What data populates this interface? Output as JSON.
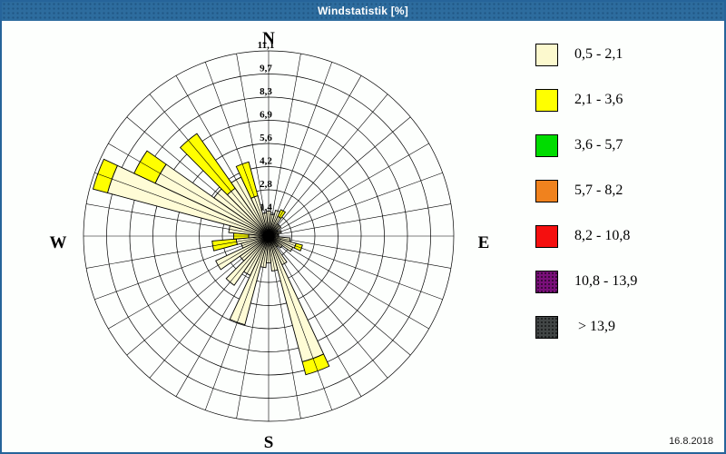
{
  "window": {
    "title": "Windstatistik [%]",
    "date": "16.8.2018"
  },
  "colors": {
    "titlebar": "#2d6c9e",
    "frame": "#26649a",
    "background": "#fdfffd",
    "grid": "#000000",
    "center_dot": "#000000"
  },
  "legend": {
    "position": "right",
    "items": [
      {
        "label": "0,5 - 2,1",
        "color": "#fcf9ce",
        "dotted": false
      },
      {
        "label": "2,1 - 3,6",
        "color": "#ffff00",
        "dotted": false
      },
      {
        "label": "3,6 - 5,7",
        "color": "#00dc00",
        "dotted": false
      },
      {
        "label": "5,7 - 8,2",
        "color": "#f0821e",
        "dotted": false
      },
      {
        "label": "8,2 - 10,8",
        "color": "#f50f0f",
        "dotted": false
      },
      {
        "label": "10,8 - 13,9",
        "color": "#7a0f7a",
        "dotted": true
      },
      {
        "label": " > 13,9",
        "color": "#424646",
        "dotted": true
      }
    ]
  },
  "chart_data": {
    "type": "windrose",
    "title": "Windstatistik [%]",
    "units": "percent_frequency",
    "grid": true,
    "legend_position": "right",
    "compass": {
      "north": "N",
      "east": "E",
      "south": "S",
      "west": "W"
    },
    "ring_labels": [
      "1,4",
      "2,8",
      "4,2",
      "5,6",
      "6,9",
      "8,3",
      "9,7",
      "11,1"
    ],
    "ring_count": 8,
    "ring_max": 11.1,
    "sector_width_deg": 10,
    "directions_deg": [
      0,
      10,
      20,
      30,
      40,
      50,
      60,
      70,
      80,
      90,
      100,
      110,
      120,
      130,
      140,
      150,
      160,
      170,
      180,
      190,
      200,
      210,
      220,
      230,
      240,
      250,
      260,
      270,
      280,
      290,
      300,
      310,
      320,
      330,
      340,
      350
    ],
    "series": [
      {
        "name": "0,5 - 2,1",
        "color": "#fffcd6",
        "values": [
          1.5,
          1.3,
          1.6,
          1.3,
          0.9,
          0.9,
          0.6,
          0.8,
          0.6,
          0.6,
          1.3,
          1.7,
          1.6,
          1.0,
          0.8,
          1.9,
          7.8,
          2.1,
          1.6,
          1.9,
          5.5,
          2.6,
          3.6,
          2.1,
          3.5,
          1.7,
          1.95,
          1.2,
          2.4,
          10.0,
          7.5,
          4.0,
          3.5,
          3.9,
          2.5,
          1.4
        ]
      },
      {
        "name": "2,1 - 3,6",
        "color": "#ffff00",
        "values": [
          0,
          0,
          0,
          0.45,
          0,
          0,
          0,
          0,
          0,
          0,
          0,
          0.4,
          0,
          0,
          0,
          0,
          0.8,
          0,
          0,
          0,
          0,
          0,
          0,
          0,
          0,
          0,
          1.45,
          0.9,
          0,
          0.9,
          1.4,
          0,
          4.0,
          0,
          2.1,
          0
        ]
      }
    ]
  }
}
